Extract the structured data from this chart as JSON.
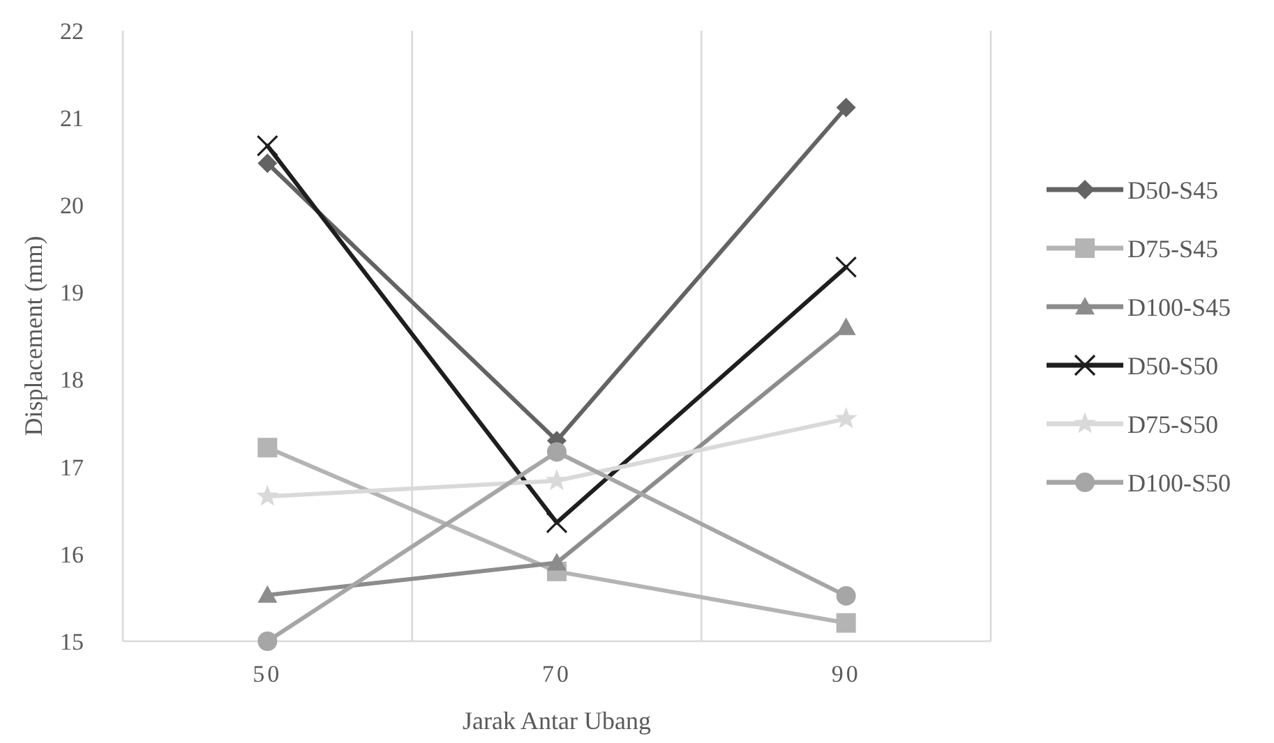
{
  "chart_data": {
    "type": "line",
    "xlabel": "Jarak Antar Ubang",
    "ylabel": "Displacement (mm)",
    "categories": [
      "50",
      "70",
      "90"
    ],
    "ylim": [
      15,
      22
    ],
    "yticks": [
      15,
      16,
      17,
      18,
      19,
      20,
      21,
      22
    ],
    "grid": "x",
    "legend": "right",
    "series": [
      {
        "name": "D50-S45",
        "color": "#636363",
        "marker": "diamond",
        "values": [
          20.48,
          17.3,
          21.12
        ]
      },
      {
        "name": "D75-S45",
        "color": "#b4b4b4",
        "marker": "square",
        "values": [
          17.22,
          15.8,
          15.21
        ]
      },
      {
        "name": "D100-S45",
        "color": "#8c8c8c",
        "marker": "triangle",
        "values": [
          15.53,
          15.9,
          18.6
        ]
      },
      {
        "name": "D50-S50",
        "color": "#1e1e1e",
        "marker": "cross",
        "values": [
          20.68,
          16.36,
          19.29
        ]
      },
      {
        "name": "D75-S50",
        "color": "#d9d9d9",
        "marker": "star",
        "values": [
          16.66,
          16.84,
          17.55
        ]
      },
      {
        "name": "D100-S50",
        "color": "#a6a6a6",
        "marker": "circle",
        "values": [
          15,
          17.17,
          15.52
        ]
      }
    ]
  }
}
